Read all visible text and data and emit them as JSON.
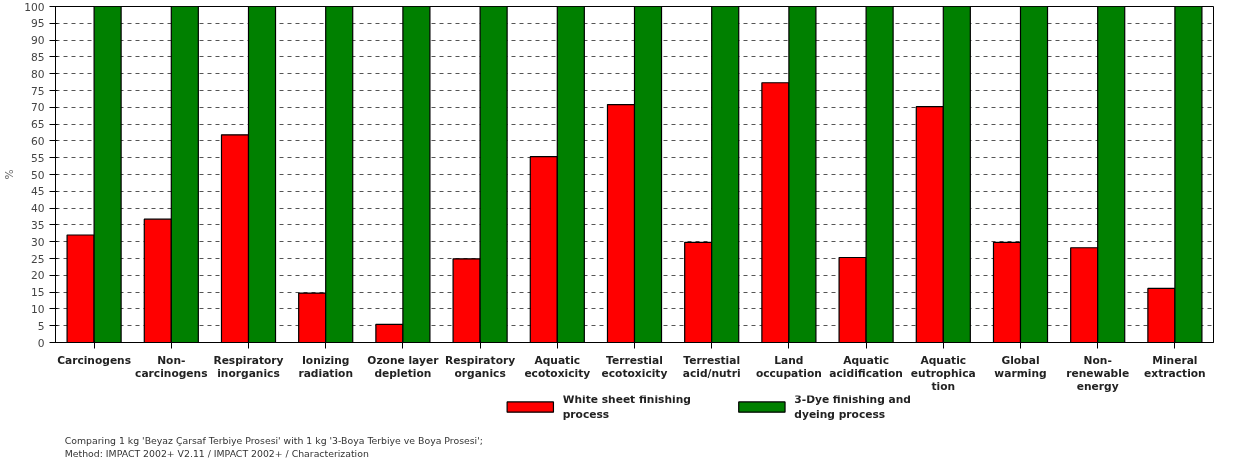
{
  "chart_data": {
    "type": "bar",
    "ylabel": "%",
    "categories": [
      "Carcinogens",
      "Non-\ncarcinogens",
      "Respiratory\ninorganics",
      "Ionizing\nradiation",
      "Ozone layer\ndepletion",
      "Respiratory\norganics",
      "Aquatic\necotoxicity",
      "Terrestial\necotoxicity",
      "Terrestial\nacid/nutri",
      "Land\noccupation",
      "Aquatic\nacidification",
      "Aquatic\neutrophica\ntion",
      "Global\nwarming",
      "Non-\nrenewable\nenergy",
      "Mineral\nextraction"
    ],
    "series": [
      {
        "name": "White sheet finishing\nprocess",
        "color": "#ff0000",
        "values": [
          32,
          36.7,
          61.8,
          14.7,
          5.4,
          24.9,
          55.3,
          70.8,
          29.8,
          77.3,
          25.3,
          70.2,
          29.8,
          28.2,
          16.1
        ]
      },
      {
        "name": "3-Dye finishing and\ndyeing process",
        "color": "#008000",
        "values": [
          100,
          100,
          100,
          100,
          100,
          100,
          100,
          100,
          100,
          100,
          100,
          100,
          100,
          100,
          100
        ]
      }
    ],
    "ylim": [
      0,
      100
    ],
    "yticks": [
      0,
      5,
      10,
      15,
      20,
      25,
      30,
      35,
      40,
      45,
      50,
      55,
      60,
      65,
      70,
      75,
      80,
      85,
      90,
      95,
      100
    ],
    "grid": "y",
    "legend": "bottom",
    "annotations": [
      "Comparing 1 kg 'Beyaz  Çarsaf Terbiye Prosesi' with 1 kg '3-Boya Terbiye ve Boya Prosesi';",
      "Method: IMPACT 2002+ V2.11 / IMPACT 2002+ / Characterization"
    ]
  }
}
